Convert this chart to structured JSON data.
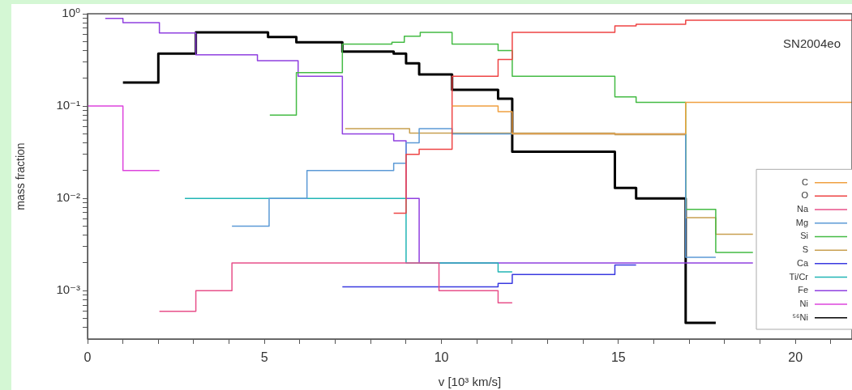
{
  "chart_data": {
    "type": "step",
    "title": "SN2004eo",
    "xlabel": "v [10³ km/s]",
    "ylabel": "mass fraction",
    "xlim": [
      0,
      21.6
    ],
    "xticks": [
      0,
      {
        "value": 1,
        "label": null
      },
      {
        "value": 2,
        "label": null
      },
      {
        "value": 3,
        "label": null
      },
      {
        "value": 4,
        "label": null
      },
      5,
      {
        "value": 6,
        "label": null
      },
      {
        "value": 7,
        "label": null
      },
      {
        "value": 8,
        "label": null
      },
      {
        "value": 9,
        "label": null
      },
      10,
      {
        "value": 11,
        "label": null
      },
      {
        "value": 12,
        "label": null
      },
      {
        "value": 13,
        "label": null
      },
      {
        "value": 14,
        "label": null
      },
      15,
      {
        "value": 16,
        "label": null
      },
      {
        "value": 17,
        "label": null
      },
      {
        "value": 18,
        "label": null
      },
      {
        "value": 19,
        "label": null
      },
      20,
      {
        "value": 21,
        "label": null
      }
    ],
    "ylim": [
      0.0003,
      1
    ],
    "log": "y",
    "yticks": [
      {
        "value": 0.0004,
        "label": null
      },
      {
        "value": 0.0005,
        "label": null
      },
      {
        "value": 0.0006,
        "label": null
      },
      {
        "value": 0.0007,
        "label": null
      },
      {
        "value": 0.0008,
        "label": null
      },
      {
        "value": 0.0009,
        "label": null
      },
      {
        "value": 0.001,
        "label": "10⁻³"
      },
      {
        "value": 0.002,
        "label": null
      },
      {
        "value": 0.003,
        "label": null
      },
      {
        "value": 0.004,
        "label": null
      },
      {
        "value": 0.005,
        "label": null
      },
      {
        "value": 0.006,
        "label": null
      },
      {
        "value": 0.007,
        "label": null
      },
      {
        "value": 0.008,
        "label": null
      },
      {
        "value": 0.009,
        "label": null
      },
      {
        "value": 0.01,
        "label": "10⁻²"
      },
      {
        "value": 0.02,
        "label": null
      },
      {
        "value": 0.03,
        "label": null
      },
      {
        "value": 0.04,
        "label": null
      },
      {
        "value": 0.05,
        "label": null
      },
      {
        "value": 0.06,
        "label": null
      },
      {
        "value": 0.07,
        "label": null
      },
      {
        "value": 0.08,
        "label": null
      },
      {
        "value": 0.09,
        "label": null
      },
      {
        "value": 0.1,
        "label": "10⁻¹"
      },
      {
        "value": 0.2,
        "label": null
      },
      {
        "value": 0.3,
        "label": null
      },
      {
        "value": 0.4,
        "label": null
      },
      {
        "value": 0.5,
        "label": null
      },
      {
        "value": 0.6,
        "label": null
      },
      {
        "value": 0.7,
        "label": null
      },
      {
        "value": 0.8,
        "label": null
      },
      {
        "value": 0.9,
        "label": null
      },
      {
        "value": 1,
        "label": "10⁰"
      }
    ],
    "grid": false,
    "legend": "bottom right",
    "series": [
      {
        "name": "C",
        "color": "#f0a040",
        "x": [
          10.3,
          11.6,
          12.0,
          16.9,
          21.6
        ],
        "values": [
          0.1,
          0.087,
          0.05,
          0.11,
          0.11
        ]
      },
      {
        "name": "O",
        "color": "#ee4444",
        "x": [
          8.65,
          9.0,
          9.37,
          10.3,
          11.6,
          12.0,
          14.9,
          15.5,
          16.9,
          21.6
        ],
        "values": [
          0.0069,
          0.03,
          0.034,
          0.21,
          0.32,
          0.63,
          0.74,
          0.77,
          0.85,
          0.85
        ]
      },
      {
        "name": "Na",
        "color": "#e8508a",
        "x": [
          2.03,
          3.06,
          4.08,
          9.93,
          11.6,
          12.0
        ],
        "values": [
          0.0006,
          0.001,
          0.002,
          0.001,
          0.00074,
          0.00074
        ]
      },
      {
        "name": "Mg",
        "color": "#5c9ad6",
        "x": [
          4.08,
          5.13,
          6.2,
          8.65,
          9.0,
          9.37,
          10.3,
          16.9,
          17.75
        ],
        "values": [
          0.005,
          0.01,
          0.02,
          0.024,
          0.04,
          0.057,
          0.05,
          0.0023,
          0.0023
        ]
      },
      {
        "name": "Si",
        "color": "#44bb44",
        "x": [
          5.15,
          5.9,
          7.2,
          8.6,
          8.95,
          9.4,
          10.3,
          11.6,
          12.0,
          14.9,
          15.5,
          16.9,
          17.75,
          18.8
        ],
        "values": [
          0.08,
          0.23,
          0.47,
          0.49,
          0.57,
          0.63,
          0.47,
          0.4,
          0.21,
          0.126,
          0.11,
          0.0076,
          0.0026,
          0.0026
        ]
      },
      {
        "name": "S",
        "color": "#c8a050",
        "x": [
          7.28,
          9.1,
          14.9,
          16.9,
          17.75,
          18.8
        ],
        "values": [
          0.057,
          0.051,
          0.049,
          0.0062,
          0.0041,
          0.0041
        ]
      },
      {
        "name": "Ca",
        "color": "#3a3ae0",
        "x": [
          7.2,
          11.6,
          12.0,
          14.9,
          15.5
        ],
        "values": [
          0.0011,
          0.0012,
          0.0015,
          0.0019,
          0.0019
        ]
      },
      {
        "name": "Ti/Cr",
        "color": "#22b5b5",
        "x": [
          2.75,
          9.0,
          11.6,
          12.0
        ],
        "values": [
          0.01,
          0.002,
          0.0016,
          0.0016
        ]
      },
      {
        "name": "Fe",
        "color": "#9040e0",
        "x": [
          0.5,
          1.0,
          2.03,
          3.06,
          4.8,
          5.95,
          7.2,
          8.65,
          9.0,
          9.37,
          18.8
        ],
        "values": [
          0.89,
          0.8,
          0.62,
          0.36,
          0.31,
          0.21,
          0.05,
          0.042,
          0.01,
          0.002,
          0.002
        ]
      },
      {
        "name": "Ni",
        "color": "#dd44dd",
        "x": [
          0,
          1.0,
          2.03
        ],
        "values": [
          0.1,
          0.02,
          0.02
        ]
      },
      {
        "name": "⁵⁶Ni",
        "color": "#000000",
        "x": [
          1.0,
          2.0,
          3.06,
          5.1,
          5.9,
          7.2,
          8.65,
          9.0,
          9.37,
          10.3,
          11.6,
          12.0,
          14.9,
          15.5,
          16.9,
          17.75
        ],
        "values": [
          0.18,
          0.37,
          0.63,
          0.56,
          0.49,
          0.39,
          0.37,
          0.29,
          0.22,
          0.15,
          0.12,
          0.032,
          0.013,
          0.01,
          0.00045,
          0.00045
        ]
      }
    ]
  }
}
